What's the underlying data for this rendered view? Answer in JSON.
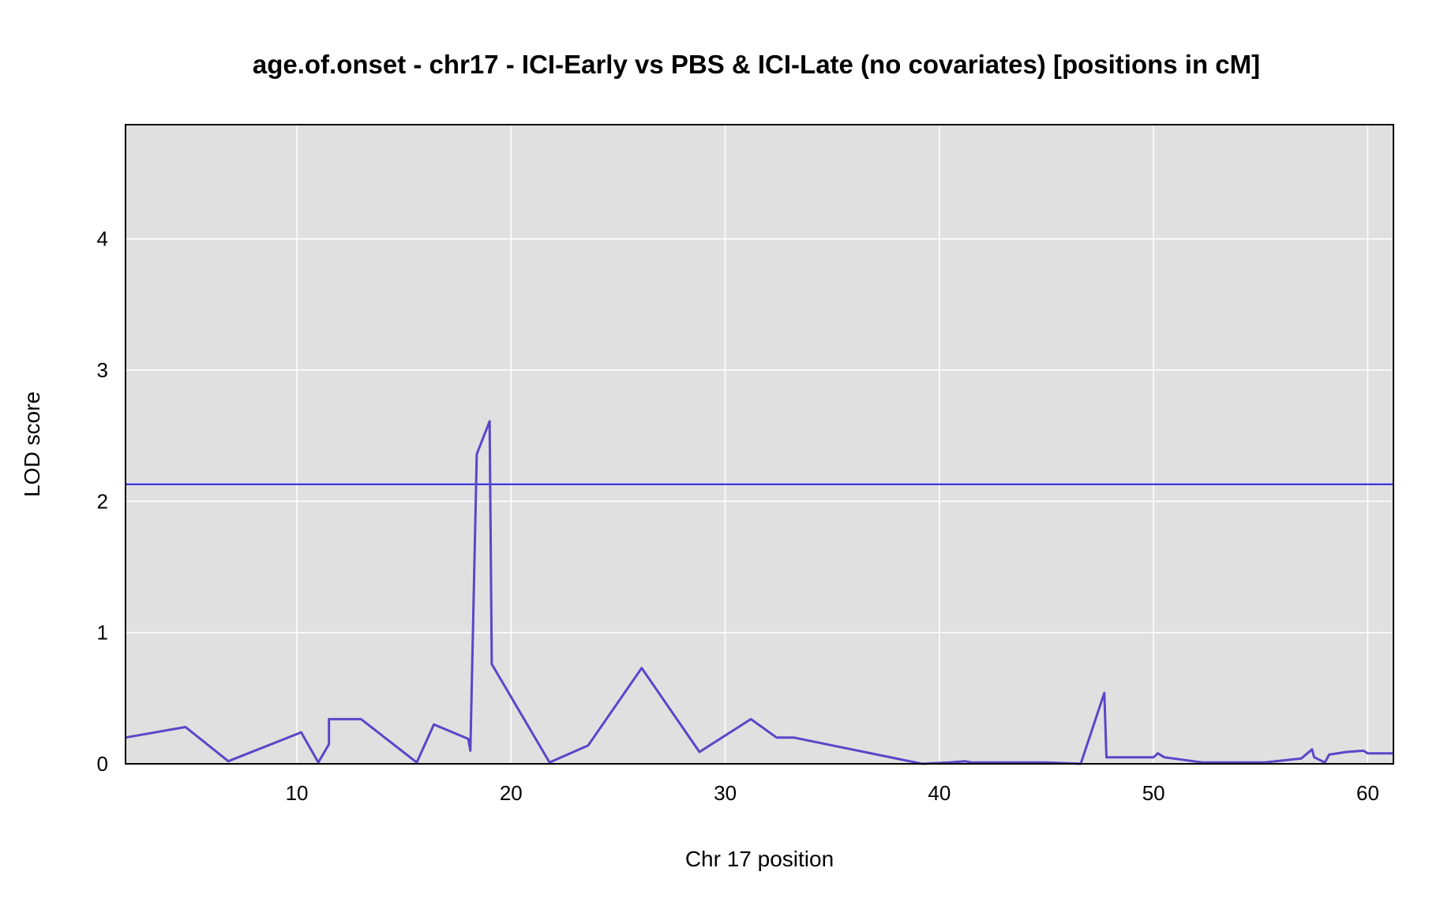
{
  "chart_data": {
    "type": "line",
    "title": "age.of.onset - chr17 - ICI-Early vs PBS & ICI-Late (no covariates) [positions in cM]",
    "xlabel": "Chr 17 position",
    "ylabel": "LOD score",
    "xlim": [
      2.0,
      61.2
    ],
    "ylim": [
      0,
      4.87
    ],
    "xticks": [
      10,
      20,
      30,
      40,
      50,
      60
    ],
    "yticks": [
      0,
      1,
      2,
      3,
      4
    ],
    "grid": true,
    "threshold": 2.13,
    "colors": {
      "panel": "#e0e0e0",
      "grid": "#ffffff",
      "line": "#5a46c8",
      "threshold": "#2a1fd6"
    },
    "series": [
      {
        "x": [
          2.0,
          4.8,
          6.8,
          10.2,
          11.0,
          11.5,
          11.5,
          13.0,
          15.6,
          16.4,
          18.0,
          18.1,
          18.4,
          19.0,
          19.1,
          21.8,
          23.6,
          26.1,
          28.8,
          31.2,
          32.4,
          33.2,
          39.2,
          40.5,
          41.2,
          41.5,
          45.0,
          46.6,
          47.7,
          47.8,
          48.8,
          50.0,
          50.2,
          50.5,
          52.3,
          55.2,
          56.9,
          57.4,
          57.5,
          58.0,
          58.2,
          59.0,
          59.8,
          60.0,
          61.2
        ],
        "y": [
          0.2,
          0.28,
          0.02,
          0.24,
          0.01,
          0.15,
          0.34,
          0.34,
          0.01,
          0.3,
          0.19,
          0.1,
          2.36,
          2.61,
          0.76,
          0.01,
          0.14,
          0.73,
          0.09,
          0.34,
          0.2,
          0.2,
          0.0,
          0.01,
          0.02,
          0.01,
          0.01,
          0.0,
          0.54,
          0.05,
          0.05,
          0.05,
          0.08,
          0.05,
          0.01,
          0.01,
          0.04,
          0.11,
          0.05,
          0.01,
          0.07,
          0.09,
          0.1,
          0.08,
          0.08
        ]
      }
    ]
  }
}
